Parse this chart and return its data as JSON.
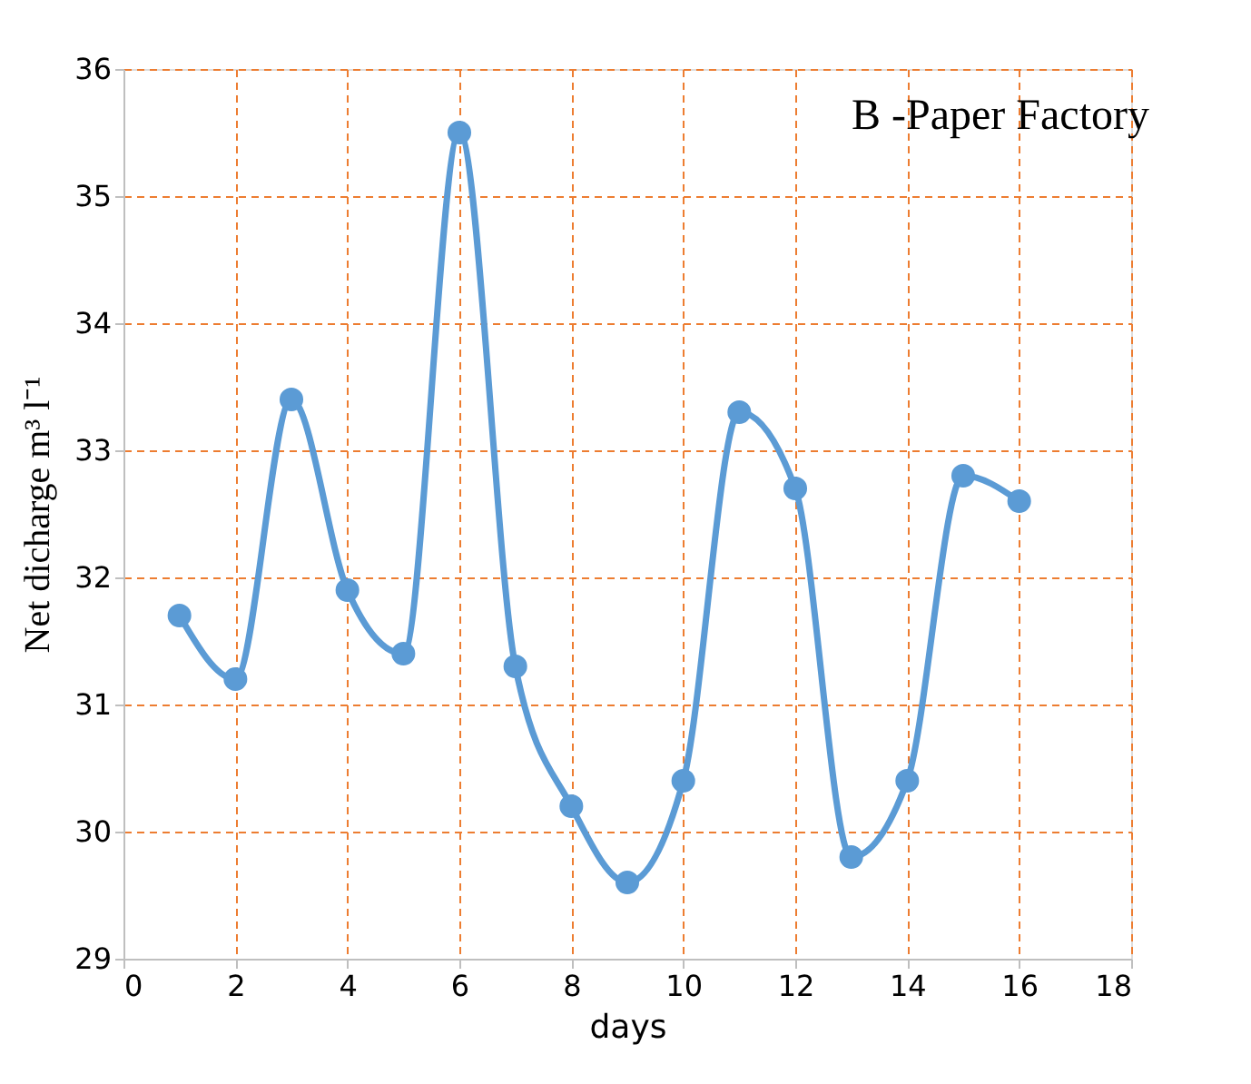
{
  "chart_data": {
    "type": "line",
    "title": "B  -Paper Factory",
    "xlabel": "days",
    "ylabel": "Net dicharge m³ l⁻¹",
    "x": [
      1,
      2,
      3,
      4,
      5,
      6,
      7,
      8,
      9,
      10,
      11,
      12,
      13,
      14,
      15,
      16
    ],
    "series": [
      {
        "color": "#5b9bd5",
        "values": [
          31.7,
          31.2,
          33.4,
          31.9,
          31.4,
          35.5,
          31.3,
          30.2,
          29.6,
          30.4,
          33.3,
          32.7,
          29.8,
          30.4,
          32.8,
          32.6
        ]
      }
    ],
    "xlim": [
      0,
      18
    ],
    "xticks": [
      0,
      2,
      4,
      6,
      8,
      10,
      12,
      14,
      16,
      18
    ],
    "ylim": [
      29,
      36
    ],
    "yticks": [
      29,
      30,
      31,
      32,
      33,
      34,
      35,
      36
    ],
    "grid": true,
    "marker": "circle",
    "line_style": "solid"
  }
}
